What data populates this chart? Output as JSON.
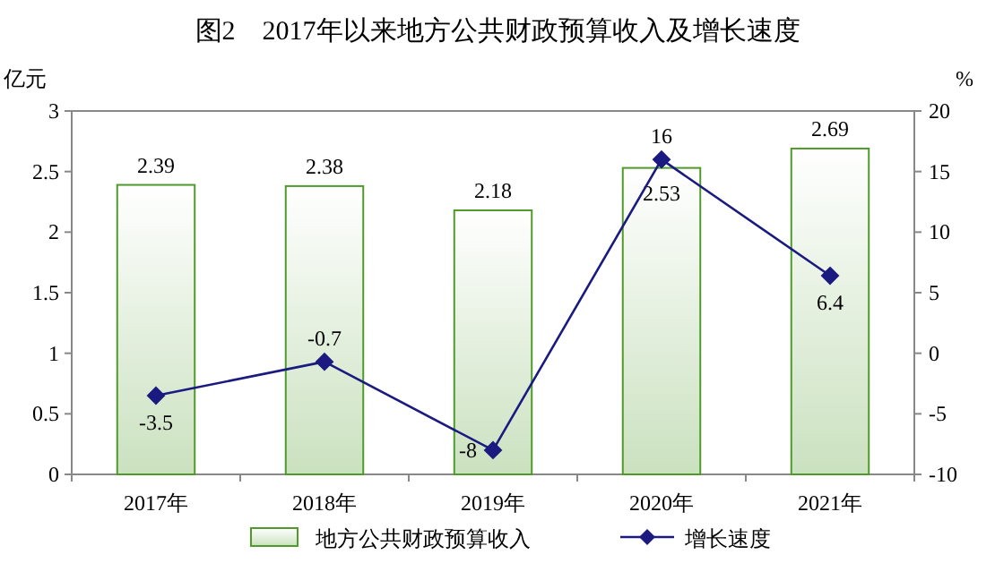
{
  "chart_data": {
    "type": "bar",
    "title": "图2　2017年以来地方公共财政预算收入及增长速度",
    "ylabel": "亿元",
    "y2label": "%",
    "categories": [
      "2017年",
      "2018年",
      "2019年",
      "2020年",
      "2021年"
    ],
    "series": [
      {
        "name": "地方公共财政预算收入",
        "color": "#4f9a2a",
        "values": [
          2.39,
          2.38,
          2.18,
          2.53,
          2.69
        ]
      },
      {
        "name": "增长速度",
        "type": "line",
        "axis": "y2",
        "color": "#1a1a80",
        "values": [
          -3.5,
          -0.7,
          -8,
          16,
          6.4
        ]
      }
    ],
    "ylim": [
      0,
      3
    ],
    "yticks": [
      0,
      0.5,
      1,
      1.5,
      2,
      2.5,
      3
    ],
    "y2lim": [
      -10,
      20
    ],
    "y2ticks": [
      -10,
      -5,
      0,
      5,
      10,
      15,
      20
    ],
    "data_labels": true,
    "grid": false,
    "legend": "bottom",
    "marker": "diamond",
    "line_style": "solid"
  }
}
